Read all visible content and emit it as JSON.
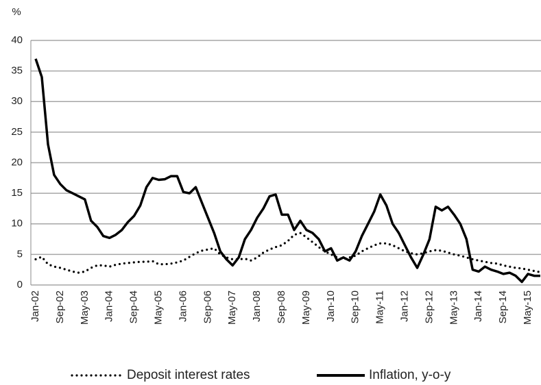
{
  "chart_data": {
    "type": "line",
    "y_label": "%",
    "categories": [
      "Jan-02",
      null,
      null,
      null,
      "Sep-02",
      null,
      null,
      null,
      "May-03",
      null,
      null,
      null,
      "Jan-04",
      null,
      null,
      null,
      "Sep-04",
      null,
      null,
      null,
      "May-05",
      null,
      null,
      null,
      "Jan-06",
      null,
      null,
      null,
      "Sep-06",
      null,
      null,
      null,
      "May-07",
      null,
      null,
      null,
      "Jan-08",
      null,
      null,
      null,
      "Sep-08",
      null,
      null,
      null,
      "May-09",
      null,
      null,
      null,
      "Jan-10",
      null,
      null,
      null,
      "Sep-10",
      null,
      null,
      null,
      "May-11",
      null,
      null,
      null,
      "Jan-12",
      null,
      null,
      null,
      "Sep-12",
      null,
      null,
      null,
      "May-13",
      null,
      null,
      null,
      "Jan-14",
      null,
      null,
      null,
      "Sep-14",
      null,
      null,
      null,
      "May-15",
      null,
      null
    ],
    "series": [
      {
        "name": "Deposit interest rates",
        "color": "#000000",
        "style": "dotted",
        "values": [
          4.2,
          4.6,
          3.4,
          3.0,
          2.8,
          2.5,
          2.2,
          2.0,
          2.2,
          2.8,
          3.2,
          3.2,
          3.0,
          3.3,
          3.5,
          3.6,
          3.7,
          3.8,
          3.8,
          3.9,
          3.4,
          3.4,
          3.5,
          3.7,
          4.0,
          4.6,
          5.2,
          5.6,
          5.8,
          6.0,
          5.0,
          4.5,
          4.2,
          4.2,
          4.3,
          4.0,
          4.5,
          5.3,
          5.8,
          6.2,
          6.5,
          7.2,
          8.2,
          8.5,
          7.8,
          7.0,
          6.2,
          5.5,
          5.0,
          4.5,
          4.2,
          4.5,
          4.8,
          5.5,
          6.0,
          6.5,
          6.8,
          6.8,
          6.5,
          6.0,
          5.5,
          5.2,
          5.0,
          5.2,
          5.5,
          5.7,
          5.6,
          5.3,
          5.0,
          4.8,
          4.5,
          4.2,
          4.0,
          3.8,
          3.6,
          3.5,
          3.2,
          3.0,
          2.8,
          2.7,
          2.5,
          2.3,
          2.1
        ]
      },
      {
        "name": "Inflation, y-o-y",
        "color": "#000000",
        "style": "solid",
        "values": [
          37,
          34,
          23,
          18,
          16.5,
          15.5,
          15,
          14.5,
          14,
          10.5,
          9.5,
          8,
          7.7,
          8.2,
          9,
          10.3,
          11.3,
          13,
          16,
          17.5,
          17.2,
          17.3,
          17.8,
          17.8,
          15.2,
          15,
          16,
          13.5,
          11,
          8.5,
          5.5,
          4.2,
          3.2,
          4.5,
          7.5,
          9,
          11,
          12.5,
          14.5,
          14.8,
          11.5,
          11.5,
          9,
          10.5,
          9,
          8.5,
          7.5,
          5.5,
          6,
          4,
          4.5,
          4,
          5.5,
          8,
          10,
          12,
          14.8,
          13,
          10,
          8.5,
          6.5,
          4.5,
          2.8,
          5,
          7.5,
          12.8,
          12.2,
          12.8,
          11.5,
          10,
          7.5,
          2.5,
          2.2,
          3,
          2.5,
          2.2,
          1.8,
          2,
          1.5,
          0.5,
          1.8,
          1.5,
          1.5
        ]
      }
    ],
    "ylim": [
      0,
      40
    ],
    "yticks": [
      0,
      5,
      10,
      15,
      20,
      25,
      30,
      35,
      40
    ],
    "grid": true,
    "legend": "bottom"
  }
}
